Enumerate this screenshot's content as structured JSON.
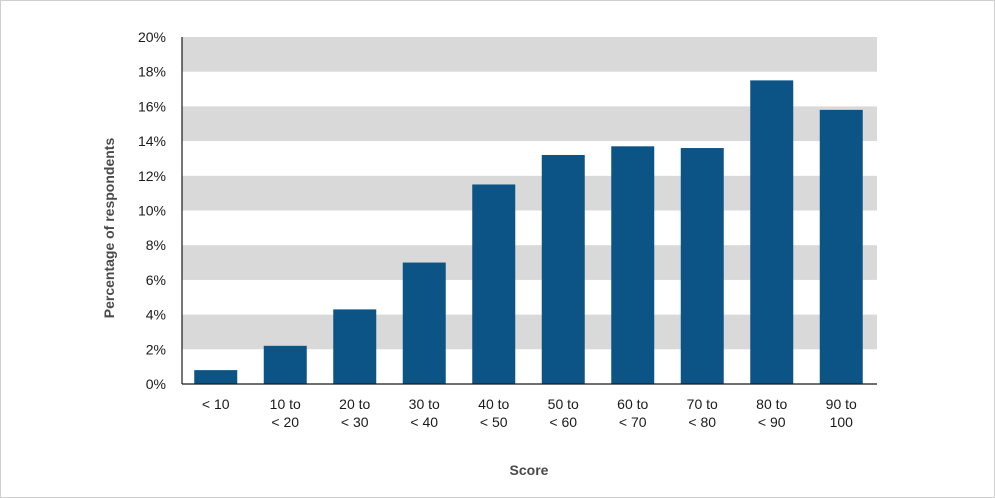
{
  "chart_data": {
    "type": "bar",
    "categories": [
      [
        "< 10"
      ],
      [
        "10 to",
        "< 20"
      ],
      [
        "20 to",
        "< 30"
      ],
      [
        "30 to",
        "< 40"
      ],
      [
        "40 to",
        "< 50"
      ],
      [
        "50 to",
        "< 60"
      ],
      [
        "60 to",
        "< 70"
      ],
      [
        "70 to",
        "< 80"
      ],
      [
        "80 to",
        "< 90"
      ],
      [
        "90 to",
        "100"
      ]
    ],
    "values": [
      0.8,
      2.2,
      4.3,
      7.0,
      11.5,
      13.2,
      13.7,
      13.6,
      17.5,
      15.8
    ],
    "xlabel": "Score",
    "ylabel": "Percentage of respondents",
    "ylim": [
      0,
      20
    ],
    "yticks": [
      "0%",
      "2%",
      "4%",
      "6%",
      "8%",
      "10%",
      "12%",
      "14%",
      "16%",
      "18%",
      "20%"
    ],
    "grid": "alternating horizontal bands",
    "colors": {
      "bar": "#0b5485",
      "band": "#d9d9d9",
      "axis": "#1a1a1a"
    }
  }
}
